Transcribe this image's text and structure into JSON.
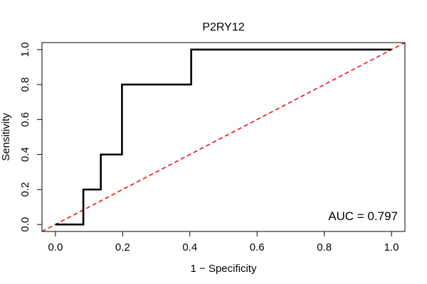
{
  "chart_data": {
    "type": "line",
    "title": "P2RY12",
    "xlabel": "1 − Specificity",
    "ylabel": "Sensitivity",
    "xlim": [
      -0.04,
      1.04
    ],
    "ylim": [
      -0.04,
      1.04
    ],
    "xticks": [
      0.0,
      0.2,
      0.4,
      0.6,
      0.8,
      1.0
    ],
    "yticks": [
      0.0,
      0.2,
      0.4,
      0.6,
      0.8,
      1.0
    ],
    "xtick_labels": [
      "0.0",
      "0.2",
      "0.4",
      "0.6",
      "0.8",
      "1.0"
    ],
    "ytick_labels": [
      "0.0",
      "0.2",
      "0.4",
      "0.6",
      "0.8",
      "1.0"
    ],
    "annotation": "AUC = 0.797",
    "grid": false,
    "series": [
      {
        "style": "step",
        "color": "#000000",
        "x": [
          0.0,
          0.083,
          0.083,
          0.135,
          0.135,
          0.198,
          0.198,
          0.404,
          0.404,
          1.0
        ],
        "y": [
          0.0,
          0.0,
          0.2,
          0.2,
          0.4,
          0.4,
          0.8,
          0.8,
          1.0,
          1.0
        ]
      },
      {
        "style": "dashed-reference",
        "color": "#e8191e",
        "x": [
          -0.04,
          1.04
        ],
        "y": [
          -0.04,
          1.04
        ]
      }
    ]
  }
}
